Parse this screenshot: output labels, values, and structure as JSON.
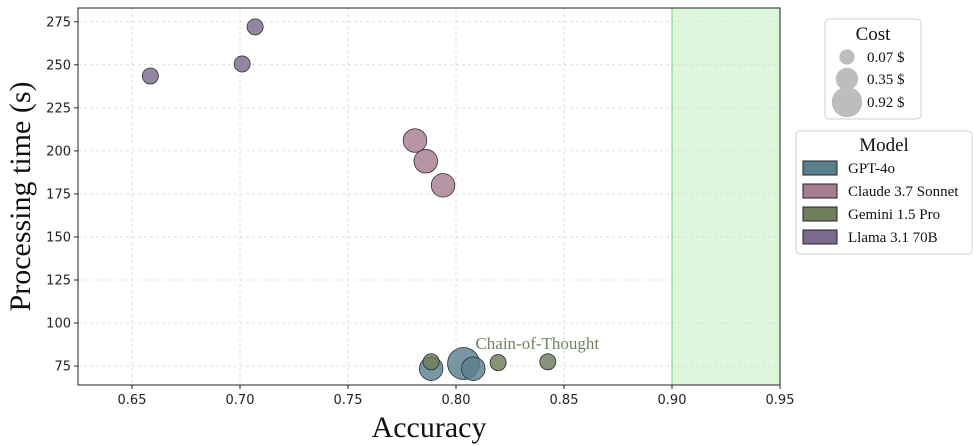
{
  "chart_data": {
    "type": "scatter",
    "xlabel": "Accuracy",
    "ylabel": "Processing time (s)",
    "xlim": [
      0.625,
      0.95
    ],
    "ylim": [
      64,
      283
    ],
    "xticks": [
      "0.65",
      "0.70",
      "0.75",
      "0.80",
      "0.85",
      "0.90",
      "0.95"
    ],
    "yticks": [
      "75",
      "100",
      "125",
      "150",
      "175",
      "200",
      "225",
      "250",
      "275"
    ],
    "grid": true,
    "highlight_region": {
      "x_from": 0.9,
      "x_to": 0.95,
      "color": "#dcf7dc"
    },
    "annotation": {
      "text": "Chain-of-Thought",
      "x": 0.809,
      "y": 79,
      "color": "#6f8361"
    },
    "series": [
      {
        "name": "GPT-4o",
        "color": "#5a7f8f",
        "points": [
          {
            "x": 0.7885,
            "y": 73.5,
            "cost": 0.35
          },
          {
            "x": 0.8035,
            "y": 76.5,
            "cost": 0.92
          },
          {
            "x": 0.808,
            "y": 73.5,
            "cost": 0.35
          }
        ]
      },
      {
        "name": "Claude 3.7 Sonnet",
        "color": "#a77d92",
        "points": [
          {
            "x": 0.781,
            "y": 206,
            "cost": 0.35
          },
          {
            "x": 0.786,
            "y": 194,
            "cost": 0.35
          },
          {
            "x": 0.794,
            "y": 180,
            "cost": 0.35
          }
        ]
      },
      {
        "name": "Gemini 1.5 Pro",
        "color": "#6e7d5a",
        "points": [
          {
            "x": 0.7885,
            "y": 77.5,
            "cost": 0.07
          },
          {
            "x": 0.8195,
            "y": 77,
            "cost": 0.07
          },
          {
            "x": 0.8425,
            "y": 77.5,
            "cost": 0.07
          }
        ]
      },
      {
        "name": "Llama 3.1 70B",
        "color": "#7c6b8e",
        "points": [
          {
            "x": 0.6585,
            "y": 243.5,
            "cost": 0.07
          },
          {
            "x": 0.701,
            "y": 250.5,
            "cost": 0.07
          },
          {
            "x": 0.707,
            "y": 272,
            "cost": 0.07
          }
        ]
      }
    ],
    "size_legend": {
      "title": "Cost",
      "entries": [
        {
          "label": "0.07 $",
          "cost": 0.07
        },
        {
          "label": "0.35 $",
          "cost": 0.35
        },
        {
          "label": "0.92 $",
          "cost": 0.92
        }
      ]
    },
    "color_legend": {
      "title": "Model",
      "placement": "right"
    }
  }
}
